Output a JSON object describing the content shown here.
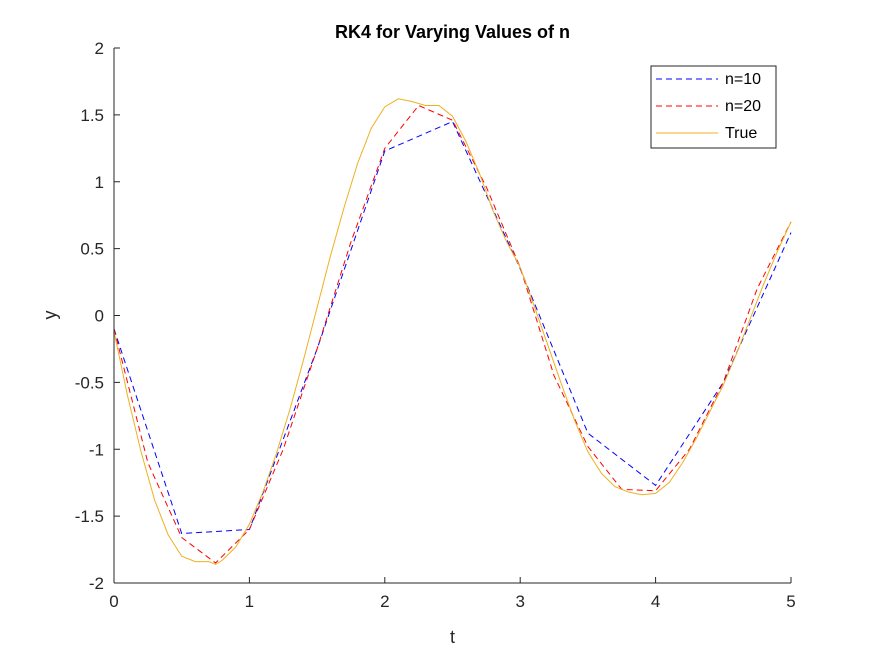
{
  "chart_data": {
    "type": "line",
    "title": "RK4 for Varying Values of n",
    "xlabel": "t",
    "ylabel": "y",
    "xlim": [
      0,
      5
    ],
    "ylim": [
      -2,
      2
    ],
    "xticks": [
      "0",
      "1",
      "2",
      "3",
      "4",
      "5"
    ],
    "xtick_values": [
      0,
      1,
      2,
      3,
      4,
      5
    ],
    "yticks": [
      "2",
      "1.5",
      "1",
      "0.5",
      "0",
      "-0.5",
      "-1",
      "-1.5",
      "-2"
    ],
    "ytick_values": [
      2,
      1.5,
      1,
      0.5,
      0,
      -0.5,
      -1,
      -1.5,
      -2
    ],
    "grid": false,
    "legend_position": "top-right",
    "series": [
      {
        "name": "n=10",
        "color": "#0000ff",
        "style": "dashed",
        "x": [
          0,
          0.5,
          1,
          1.5,
          2,
          2.5,
          3,
          3.5,
          4,
          4.5,
          5
        ],
        "y": [
          -0.1,
          -1.63,
          -1.6,
          -0.25,
          1.23,
          1.45,
          0.35,
          -0.88,
          -1.27,
          -0.5,
          0.62
        ]
      },
      {
        "name": "n=20",
        "color": "#ff0000",
        "style": "dashed",
        "x": [
          0,
          0.25,
          0.5,
          0.75,
          1,
          1.25,
          1.5,
          1.75,
          2,
          2.25,
          2.5,
          2.75,
          3,
          3.25,
          3.5,
          3.75,
          4,
          4.25,
          4.5,
          4.75,
          5
        ],
        "y": [
          -0.1,
          -1.1,
          -1.66,
          -1.85,
          -1.6,
          -1.0,
          -0.25,
          0.55,
          1.25,
          1.57,
          1.46,
          0.96,
          0.36,
          -0.45,
          -0.98,
          -1.3,
          -1.31,
          -1.0,
          -0.5,
          0.2,
          0.7
        ]
      },
      {
        "name": "True",
        "color": "#edb120",
        "style": "solid",
        "x": [
          0,
          0.1,
          0.2,
          0.3,
          0.4,
          0.5,
          0.6,
          0.7,
          0.75,
          0.8,
          0.9,
          1.0,
          1.1,
          1.2,
          1.3,
          1.4,
          1.5,
          1.6,
          1.7,
          1.8,
          1.9,
          2.0,
          2.1,
          2.2,
          2.3,
          2.4,
          2.5,
          2.6,
          2.7,
          2.8,
          2.9,
          3.0,
          3.1,
          3.2,
          3.3,
          3.4,
          3.5,
          3.6,
          3.7,
          3.8,
          3.9,
          4.0,
          4.1,
          4.2,
          4.3,
          4.4,
          4.5,
          4.6,
          4.7,
          4.8,
          4.9,
          5.0
        ],
        "y": [
          -0.12,
          -0.6,
          -1.02,
          -1.38,
          -1.64,
          -1.8,
          -1.84,
          -1.84,
          -1.86,
          -1.83,
          -1.73,
          -1.56,
          -1.32,
          -1.03,
          -0.7,
          -0.33,
          0.06,
          0.45,
          0.81,
          1.14,
          1.4,
          1.56,
          1.62,
          1.6,
          1.57,
          1.57,
          1.49,
          1.3,
          1.06,
          0.78,
          0.55,
          0.36,
          0.08,
          -0.21,
          -0.5,
          -0.78,
          -1.02,
          -1.18,
          -1.28,
          -1.32,
          -1.34,
          -1.33,
          -1.25,
          -1.1,
          -0.92,
          -0.72,
          -0.52,
          -0.28,
          -0.02,
          0.24,
          0.48,
          0.7
        ]
      }
    ]
  }
}
